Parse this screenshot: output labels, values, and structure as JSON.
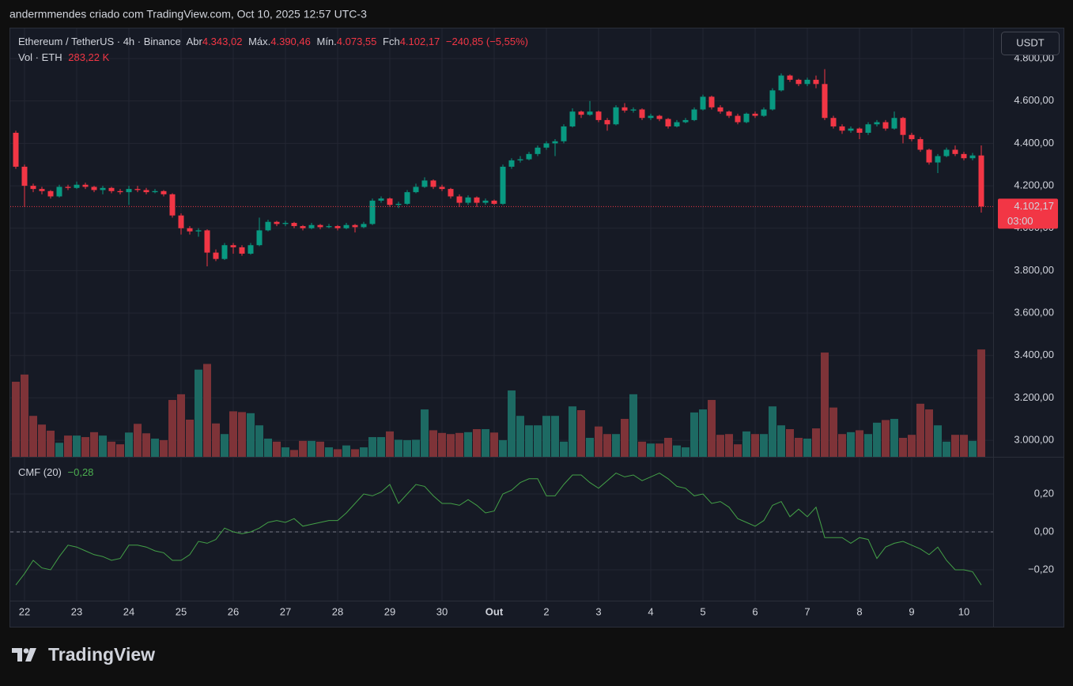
{
  "header": {
    "text": "andermmendes criado com TradingView.com, Oct 10, 2025 12:57 UTC-3"
  },
  "chart_data": [
    {
      "type": "candlestick",
      "title": "Ethereum / TetherUS · 4h · Binance",
      "legend": {
        "open": {
          "label": "Abr",
          "value": "4.343,02"
        },
        "high": {
          "label": "Máx.",
          "value": "4.390,46"
        },
        "low": {
          "label": "Mín.",
          "value": "4.073,55"
        },
        "close": {
          "label": "Fch",
          "value": "4.102,17"
        },
        "change": "−240,85 (−5,55%)"
      },
      "categories": [
        null,
        "22",
        null,
        null,
        null,
        null,
        null,
        "23",
        null,
        null,
        null,
        null,
        null,
        "24",
        null,
        null,
        null,
        null,
        null,
        "25",
        null,
        null,
        null,
        null,
        null,
        "26",
        null,
        null,
        null,
        null,
        null,
        "27",
        null,
        null,
        null,
        null,
        null,
        "28",
        null,
        null,
        null,
        null,
        null,
        "29",
        null,
        null,
        null,
        null,
        null,
        "30",
        null,
        null,
        null,
        null,
        null,
        "Out",
        null,
        null,
        null,
        null,
        null,
        "2",
        null,
        null,
        null,
        null,
        null,
        "3",
        null,
        null,
        null,
        null,
        null,
        "4",
        null,
        null,
        null,
        null,
        null,
        "5",
        null,
        null,
        null,
        null,
        null,
        "6",
        null,
        null,
        null,
        null,
        null,
        "7",
        null,
        null,
        null,
        null,
        null,
        "8",
        null,
        null,
        null,
        null,
        null,
        "9",
        null,
        null,
        null,
        null,
        null,
        "10",
        null,
        null
      ],
      "open": [
        4450,
        4290,
        4200,
        4185,
        4175,
        4150,
        4195,
        4190,
        4205,
        4195,
        4180,
        4190,
        4175,
        4170,
        4185,
        4180,
        4170,
        4175,
        4160,
        4060,
        4000,
        3985,
        3990,
        3885,
        3855,
        3920,
        3910,
        3880,
        3920,
        3990,
        4030,
        4020,
        4025,
        4010,
        4000,
        4015,
        4005,
        4010,
        4000,
        4015,
        4005,
        4020,
        4130,
        4140,
        4110,
        4115,
        4170,
        4195,
        4225,
        4195,
        4185,
        4150,
        4120,
        4145,
        4120,
        4130,
        4115,
        4290,
        4320,
        4325,
        4350,
        4380,
        4400,
        4410,
        4480,
        4550,
        4535,
        4550,
        4510,
        4490,
        4570,
        4555,
        4560,
        4520,
        4530,
        4515,
        4480,
        4500,
        4510,
        4560,
        4620,
        4570,
        4550,
        4530,
        4500,
        4540,
        4530,
        4560,
        4650,
        4720,
        4700,
        4680,
        4700,
        4680,
        4520,
        4480,
        4460,
        4470,
        4450,
        4490,
        4500,
        4470,
        4520,
        4440,
        4420,
        4370,
        4310,
        4340,
        4370,
        4350,
        4330,
        4343.02
      ],
      "high": [
        4460,
        4300,
        4210,
        4195,
        4180,
        4205,
        4205,
        4220,
        4215,
        4200,
        4200,
        4195,
        4185,
        4200,
        4200,
        4190,
        4185,
        4180,
        4165,
        4070,
        4010,
        4000,
        3995,
        3900,
        3930,
        3930,
        3920,
        3930,
        4050,
        4040,
        4035,
        4035,
        4030,
        4015,
        4025,
        4020,
        4020,
        4015,
        4025,
        4020,
        4030,
        4140,
        4150,
        4145,
        4125,
        4180,
        4210,
        4240,
        4230,
        4205,
        4190,
        4160,
        4155,
        4150,
        4140,
        4135,
        4300,
        4330,
        4340,
        4360,
        4390,
        4410,
        4420,
        4490,
        4565,
        4555,
        4600,
        4555,
        4520,
        4580,
        4590,
        4570,
        4565,
        4540,
        4535,
        4520,
        4510,
        4520,
        4570,
        4630,
        4625,
        4580,
        4555,
        4540,
        4545,
        4550,
        4570,
        4660,
        4730,
        4725,
        4705,
        4710,
        4720,
        4750,
        4530,
        4490,
        4480,
        4475,
        4500,
        4510,
        4510,
        4550,
        4525,
        4450,
        4430,
        4375,
        4350,
        4380,
        4390,
        4360,
        4355,
        4390.46
      ],
      "low": [
        4280,
        4100,
        4170,
        4160,
        4140,
        4145,
        4180,
        4185,
        4185,
        4170,
        4160,
        4165,
        4160,
        4110,
        4170,
        4160,
        4165,
        4150,
        4050,
        3970,
        3970,
        3960,
        3820,
        3845,
        3850,
        3880,
        3870,
        3875,
        3915,
        3985,
        4010,
        4010,
        4000,
        3990,
        3995,
        3995,
        4000,
        3990,
        3995,
        3980,
        4000,
        4015,
        4120,
        4100,
        4095,
        4110,
        4165,
        4190,
        4185,
        4175,
        4140,
        4100,
        4110,
        4100,
        4110,
        4110,
        4110,
        4280,
        4310,
        4320,
        4340,
        4370,
        4340,
        4400,
        4475,
        4520,
        4530,
        4500,
        4460,
        4485,
        4545,
        4545,
        4510,
        4510,
        4505,
        4470,
        4475,
        4495,
        4505,
        4555,
        4560,
        4540,
        4520,
        4490,
        4495,
        4520,
        4525,
        4555,
        4645,
        4690,
        4670,
        4670,
        4660,
        4510,
        4470,
        4445,
        4450,
        4420,
        4440,
        4480,
        4460,
        4465,
        4400,
        4410,
        4360,
        4300,
        4260,
        4335,
        4340,
        4320,
        4320,
        4073.55
      ],
      "close": [
        4290,
        4200,
        4185,
        4175,
        4150,
        4195,
        4190,
        4205,
        4195,
        4180,
        4190,
        4175,
        4170,
        4185,
        4180,
        4170,
        4175,
        4160,
        4060,
        4000,
        3985,
        3990,
        3885,
        3855,
        3920,
        3910,
        3880,
        3920,
        3990,
        4030,
        4020,
        4025,
        4010,
        4000,
        4015,
        4005,
        4010,
        4000,
        4015,
        4005,
        4020,
        4130,
        4140,
        4110,
        4115,
        4170,
        4195,
        4225,
        4195,
        4185,
        4150,
        4120,
        4145,
        4120,
        4130,
        4115,
        4290,
        4320,
        4325,
        4350,
        4380,
        4400,
        4410,
        4480,
        4550,
        4535,
        4550,
        4510,
        4490,
        4570,
        4555,
        4560,
        4520,
        4530,
        4515,
        4480,
        4500,
        4510,
        4560,
        4620,
        4570,
        4550,
        4530,
        4500,
        4540,
        4530,
        4560,
        4650,
        4720,
        4700,
        4680,
        4700,
        4680,
        4520,
        4480,
        4460,
        4470,
        4450,
        4490,
        4500,
        4470,
        4520,
        4440,
        4420,
        4370,
        4310,
        4340,
        4370,
        4350,
        4330,
        4343.02,
        4102.17
      ],
      "up_color": "#089981",
      "down_color": "#f23645",
      "ylim": [
        2922,
        4942
      ],
      "yticks": [
        {
          "value": 3000,
          "label": "3.000,00"
        },
        {
          "value": 3200,
          "label": "3.200,00"
        },
        {
          "value": 3400,
          "label": "3.400,00"
        },
        {
          "value": 3600,
          "label": "3.600,00"
        },
        {
          "value": 3800,
          "label": "3.800,00"
        },
        {
          "value": 4000,
          "label": "4.000,00"
        },
        {
          "value": 4200,
          "label": "4.200,00"
        },
        {
          "value": 4400,
          "label": "4.400,00"
        },
        {
          "value": 4600,
          "label": "4.600,00"
        },
        {
          "value": 4800,
          "label": "4.800,00"
        }
      ],
      "grid": true,
      "last_price_label": "4.102,17",
      "countdown": "03:00",
      "currency": "USDT"
    },
    {
      "type": "bar",
      "title": "Vol · ETH",
      "legend_value": "283,22 K",
      "values": [
        198,
        217,
        108,
        85,
        69,
        37,
        56,
        56,
        52,
        65,
        56,
        40,
        33,
        64,
        87,
        62,
        48,
        44,
        150,
        165,
        98,
        230,
        245,
        88,
        60,
        120,
        118,
        115,
        83,
        48,
        40,
        25,
        18,
        42,
        42,
        40,
        25,
        20,
        30,
        20,
        25,
        52,
        52,
        67,
        45,
        44,
        45,
        125,
        70,
        63,
        60,
        63,
        65,
        73,
        73,
        64,
        44,
        175,
        108,
        83,
        83,
        108,
        108,
        40,
        133,
        123,
        50,
        80,
        60,
        60,
        100,
        165,
        40,
        35,
        35,
        50,
        30,
        25,
        117,
        125,
        150,
        58,
        60,
        33,
        67,
        60,
        60,
        133,
        83,
        73,
        50,
        48,
        75,
        275,
        130,
        60,
        65,
        70,
        60,
        90,
        97,
        100,
        50,
        58,
        140,
        125,
        83,
        40,
        58,
        58,
        42,
        283.22
      ],
      "up_color": "#1d6a63",
      "down_color": "#7e3338",
      "ylim": [
        0,
        1130
      ]
    },
    {
      "type": "line",
      "title": "CMF (20)",
      "legend_value": "−0,28",
      "values": [
        -0.28,
        -0.22,
        -0.15,
        -0.19,
        -0.2,
        -0.13,
        -0.07,
        -0.08,
        -0.1,
        -0.12,
        -0.13,
        -0.15,
        -0.14,
        -0.07,
        -0.07,
        -0.08,
        -0.1,
        -0.11,
        -0.15,
        -0.15,
        -0.12,
        -0.05,
        -0.06,
        -0.04,
        0.02,
        0,
        -0.01,
        0,
        0.02,
        0.05,
        0.06,
        0.05,
        0.07,
        0.03,
        0.04,
        0.05,
        0.06,
        0.06,
        0.1,
        0.15,
        0.2,
        0.19,
        0.21,
        0.25,
        0.15,
        0.2,
        0.25,
        0.24,
        0.19,
        0.15,
        0.15,
        0.14,
        0.17,
        0.14,
        0.1,
        0.11,
        0.2,
        0.22,
        0.26,
        0.28,
        0.28,
        0.19,
        0.19,
        0.25,
        0.3,
        0.3,
        0.26,
        0.23,
        0.27,
        0.31,
        0.29,
        0.3,
        0.27,
        0.29,
        0.31,
        0.28,
        0.24,
        0.23,
        0.19,
        0.2,
        0.15,
        0.16,
        0.13,
        0.07,
        0.05,
        0.03,
        0.06,
        0.14,
        0.16,
        0.08,
        0.12,
        0.08,
        0.13,
        -0.03,
        -0.03,
        -0.03,
        -0.06,
        -0.03,
        -0.04,
        -0.14,
        -0.08,
        -0.06,
        -0.05,
        -0.07,
        -0.09,
        -0.12,
        -0.08,
        -0.15,
        -0.2,
        -0.2,
        -0.21,
        -0.28
      ],
      "color": "#43a047",
      "ylim": [
        -0.3625,
        0.3875
      ],
      "yticks": [
        {
          "value": -0.2,
          "label": "−0,20"
        },
        {
          "value": 0,
          "label": "0,00"
        },
        {
          "value": 0.2,
          "label": "0,20"
        }
      ],
      "zero_line": "dashed"
    }
  ],
  "footer": {
    "brand": "TradingView"
  }
}
